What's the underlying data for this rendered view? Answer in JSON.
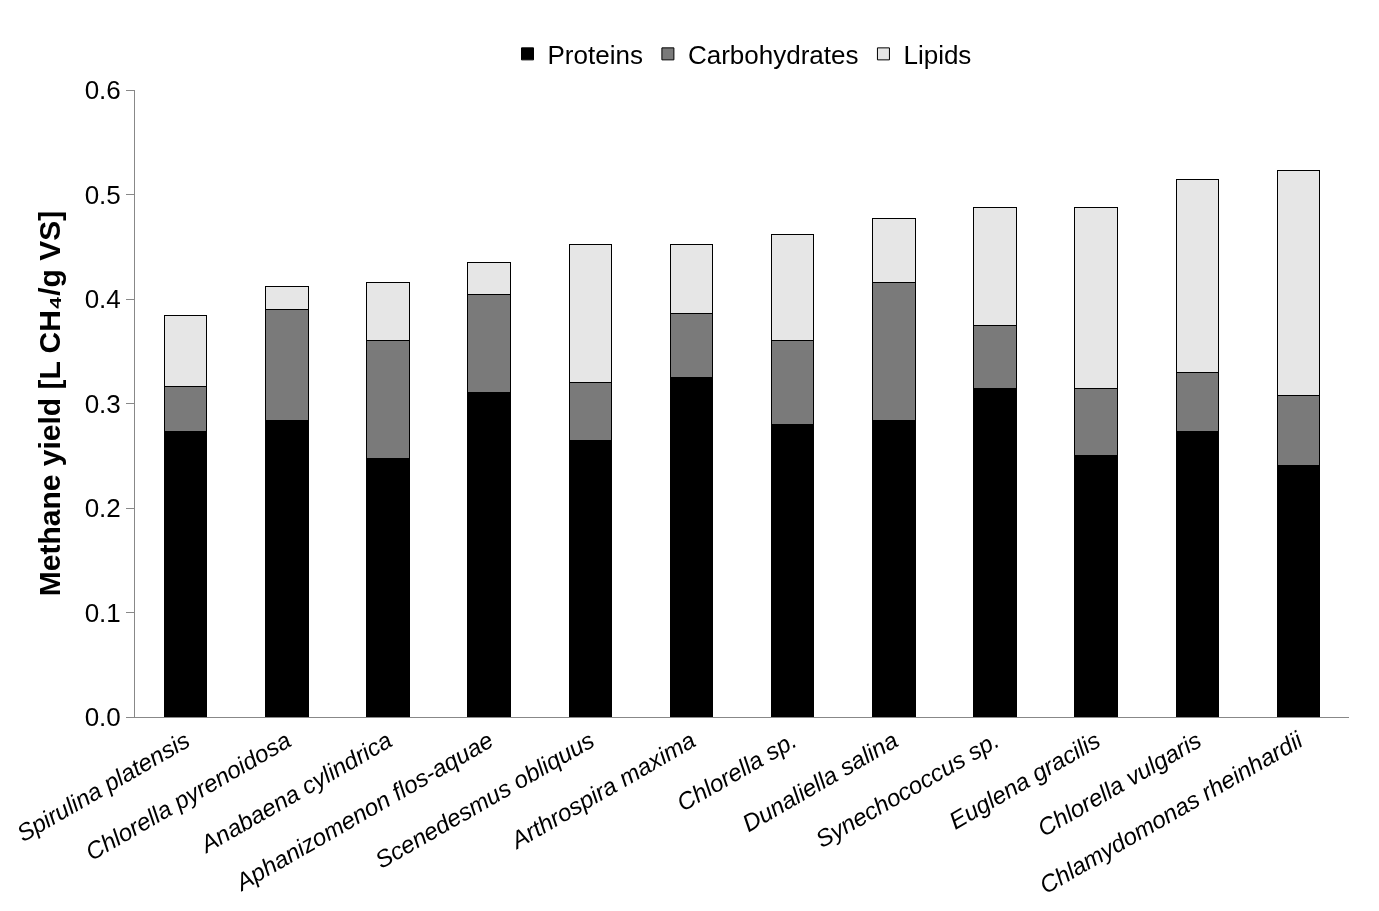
{
  "chart_data": {
    "type": "bar",
    "stacked": true,
    "ylabel": "Methane yield [L CH₄/g VS]",
    "categories": [
      "Spirulina platensis",
      "Chlorella pyrenoidosa",
      "Anabaena cylindrica",
      "Aphanizomenon flos-aquae",
      "Scenedesmus obliquus",
      "Arthrospira maxima",
      "Chlorella sp.",
      "Dunaliella salina",
      "Synechococcus sp.",
      "Euglena gracilis",
      "Chlorella vulgaris",
      "Chlamydomonas rheinhardii"
    ],
    "series": [
      {
        "name": "Proteins",
        "color": "#000000",
        "values": [
          0.273,
          0.284,
          0.247,
          0.311,
          0.265,
          0.325,
          0.28,
          0.284,
          0.314,
          0.25,
          0.273,
          0.241
        ]
      },
      {
        "name": "Carbohydrates",
        "color": "#7a7a7a",
        "values": [
          0.043,
          0.106,
          0.113,
          0.093,
          0.055,
          0.061,
          0.08,
          0.132,
          0.061,
          0.064,
          0.057,
          0.067
        ]
      },
      {
        "name": "Lipids",
        "color": "#e6e6e6",
        "values": [
          0.068,
          0.022,
          0.056,
          0.031,
          0.132,
          0.066,
          0.102,
          0.061,
          0.113,
          0.174,
          0.184,
          0.215
        ]
      }
    ],
    "ylim": [
      0,
      0.6
    ],
    "yticks": [
      {
        "value": 0,
        "label": "0.0"
      },
      0.1,
      0.2,
      0.3,
      0.4,
      0.5,
      0.6
    ],
    "legend": "top"
  }
}
